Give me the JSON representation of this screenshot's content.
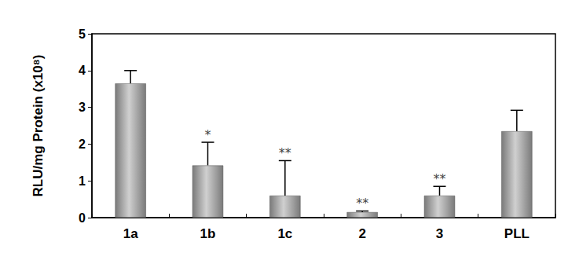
{
  "chart_data": {
    "type": "bar",
    "y_label": "RLU/mg Protein (x10⁸)",
    "categories": [
      "1a",
      "1b",
      "1c",
      "2",
      "3",
      "PLL"
    ],
    "values": [
      3.65,
      1.42,
      0.6,
      0.15,
      0.6,
      2.35
    ],
    "errors": [
      0.35,
      0.63,
      0.95,
      0.03,
      0.25,
      0.57
    ],
    "significance": [
      null,
      "*",
      "**",
      "**",
      "**",
      null
    ],
    "color": "#7a7a7a",
    "ylim": [
      0,
      5
    ],
    "yticks": [
      0,
      1,
      2,
      3,
      4,
      5
    ],
    "grid": false
  }
}
